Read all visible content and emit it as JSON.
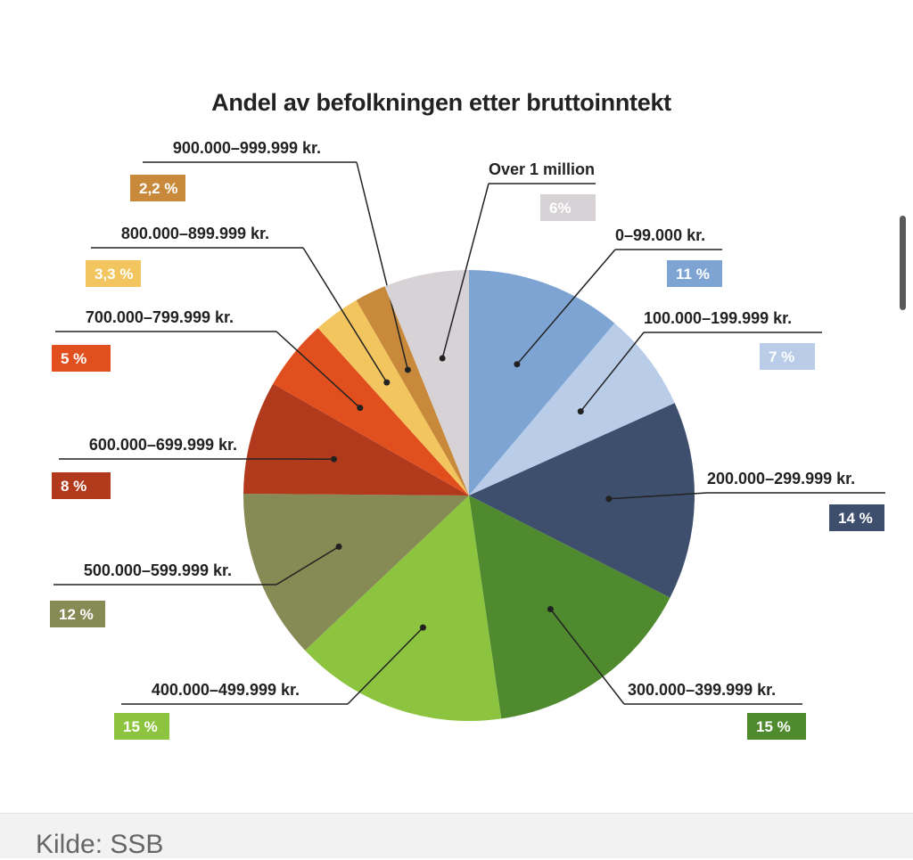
{
  "chart_data": {
    "type": "pie",
    "title": "Andel av befolkningen etter bruttoinntekt",
    "slices": [
      {
        "label": "0–99.000 kr.",
        "pct_label": "11 %",
        "value": 11,
        "color": "#7ea4d4"
      },
      {
        "label": "100.000–199.999 kr.",
        "pct_label": "7 %",
        "value": 7,
        "color": "#b9cde9"
      },
      {
        "label": "200.000–299.999 kr.",
        "pct_label": "14 %",
        "value": 14,
        "color": "#3e4f6e"
      },
      {
        "label": "300.000–399.999 kr.",
        "pct_label": "15 %",
        "value": 15,
        "color": "#4f8a2f"
      },
      {
        "label": "400.000–499.999 kr.",
        "pct_label": "15 %",
        "value": 15,
        "color": "#8cc43f"
      },
      {
        "label": "500.000–599.999 kr.",
        "pct_label": "12 %",
        "value": 12,
        "color": "#868a55"
      },
      {
        "label": "600.000–699.999 kr.",
        "pct_label": "8 %",
        "value": 8,
        "color": "#b23a1c"
      },
      {
        "label": "700.000–799.999 kr.",
        "pct_label": "5 %",
        "value": 5,
        "color": "#e24f1f"
      },
      {
        "label": "800.000–899.999 kr.",
        "pct_label": "3,3 %",
        "value": 3.3,
        "color": "#f2c55e"
      },
      {
        "label": "900.000–999.999 kr.",
        "pct_label": "2,2 %",
        "value": 2.2,
        "color": "#c8893a"
      },
      {
        "label": "Over 1 million",
        "pct_label": "6%",
        "value": 6,
        "color": "#d6d2d6"
      }
    ]
  },
  "caption": "Kilde: SSB"
}
